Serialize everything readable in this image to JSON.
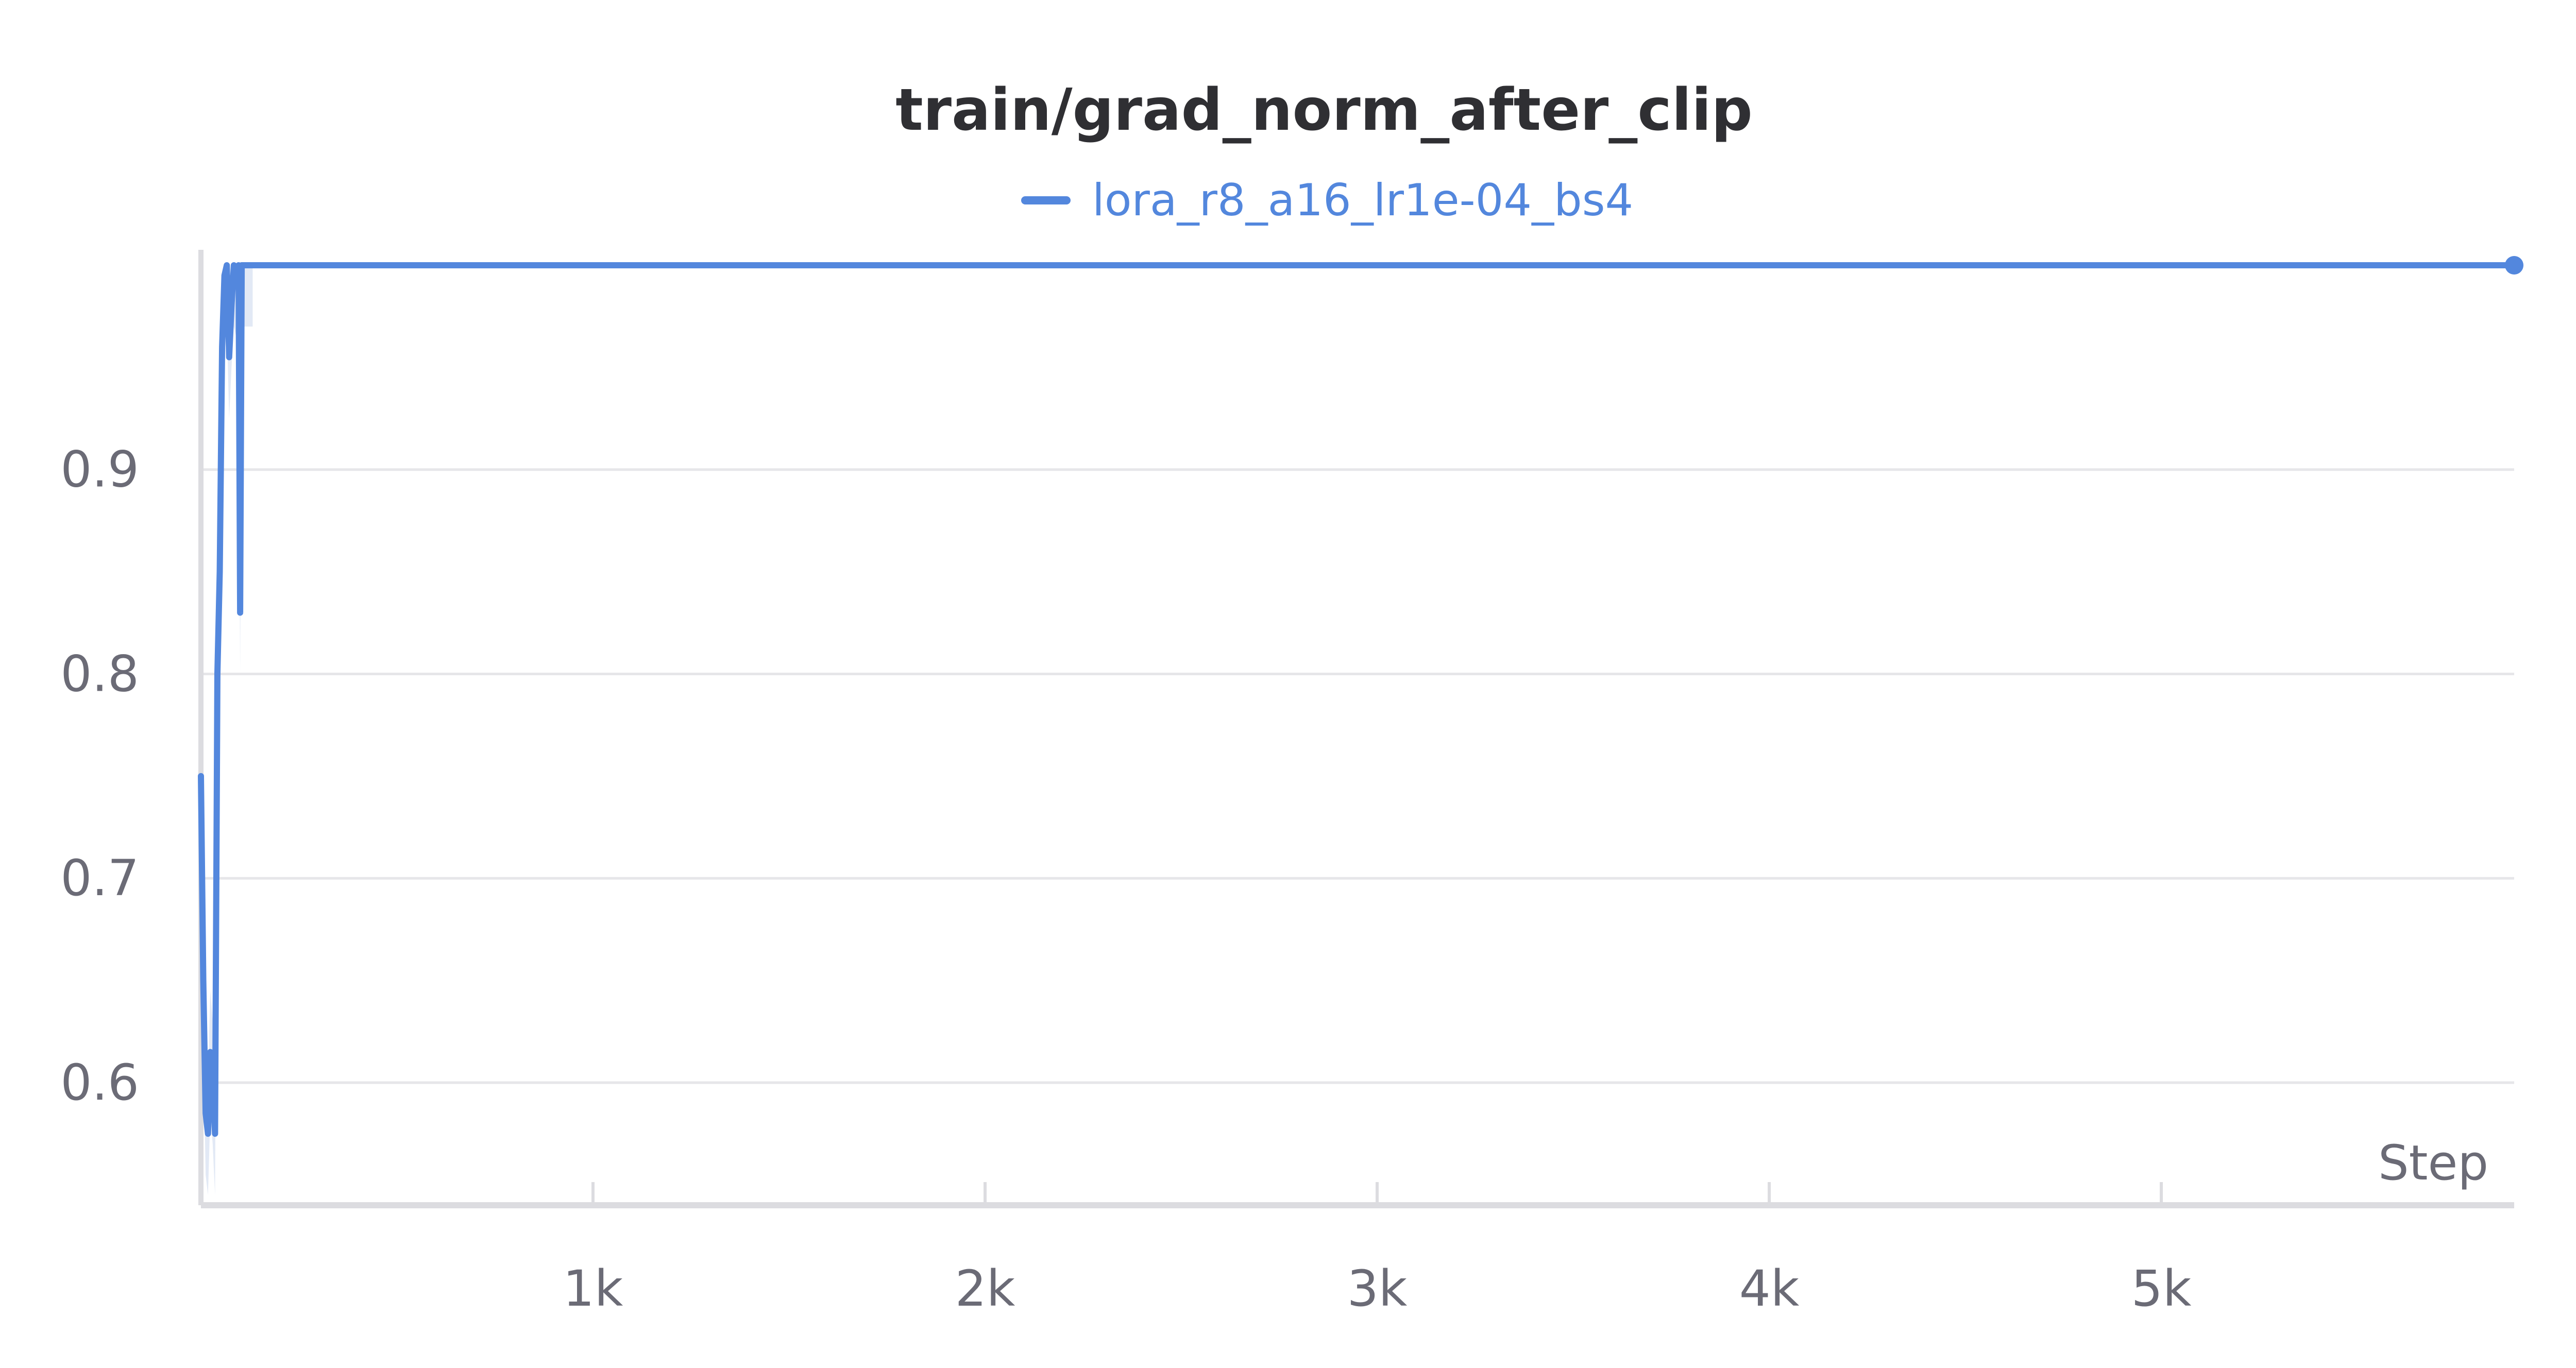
{
  "chart_data": {
    "type": "line",
    "title": "train/grad_norm_after_clip",
    "xlabel": "Step",
    "ylabel": "",
    "xlim": [
      0,
      5900
    ],
    "ylim": [
      0.54,
      1.0
    ],
    "grid": true,
    "legend_position": "top-center",
    "x_ticks": [
      1000,
      2000,
      3000,
      4000,
      5000
    ],
    "x_tick_labels": [
      "1k",
      "2k",
      "3k",
      "4k",
      "5k"
    ],
    "y_ticks": [
      0.6,
      0.7,
      0.8,
      0.9
    ],
    "y_tick_labels": [
      "0.6",
      "0.7",
      "0.8",
      "0.9"
    ],
    "colors": {
      "series": "#5387dd",
      "band": "#dbe4f3",
      "grid": "#e6e6e9",
      "axis": "#dcdce0",
      "title": "#2f2f33",
      "tick": "#6b6b76"
    },
    "series": [
      {
        "name": "lora_r8_a16_lr1e-04_bs4",
        "x": [
          0,
          6,
          12,
          18,
          24,
          30,
          36,
          42,
          48,
          54,
          60,
          66,
          72,
          78,
          84,
          90,
          96,
          100,
          104,
          108,
          112,
          116,
          120,
          124,
          128,
          132,
          5900
        ],
        "y": [
          0.75,
          0.65,
          0.585,
          0.575,
          0.615,
          0.6,
          0.575,
          0.8,
          0.85,
          0.96,
          0.995,
          1.0,
          0.955,
          0.98,
          1.0,
          0.995,
          1.0,
          0.83,
          1.0,
          1.0,
          1.0,
          1.0,
          1.0,
          1.0,
          1.0,
          1.0,
          1.0
        ]
      }
    ]
  }
}
